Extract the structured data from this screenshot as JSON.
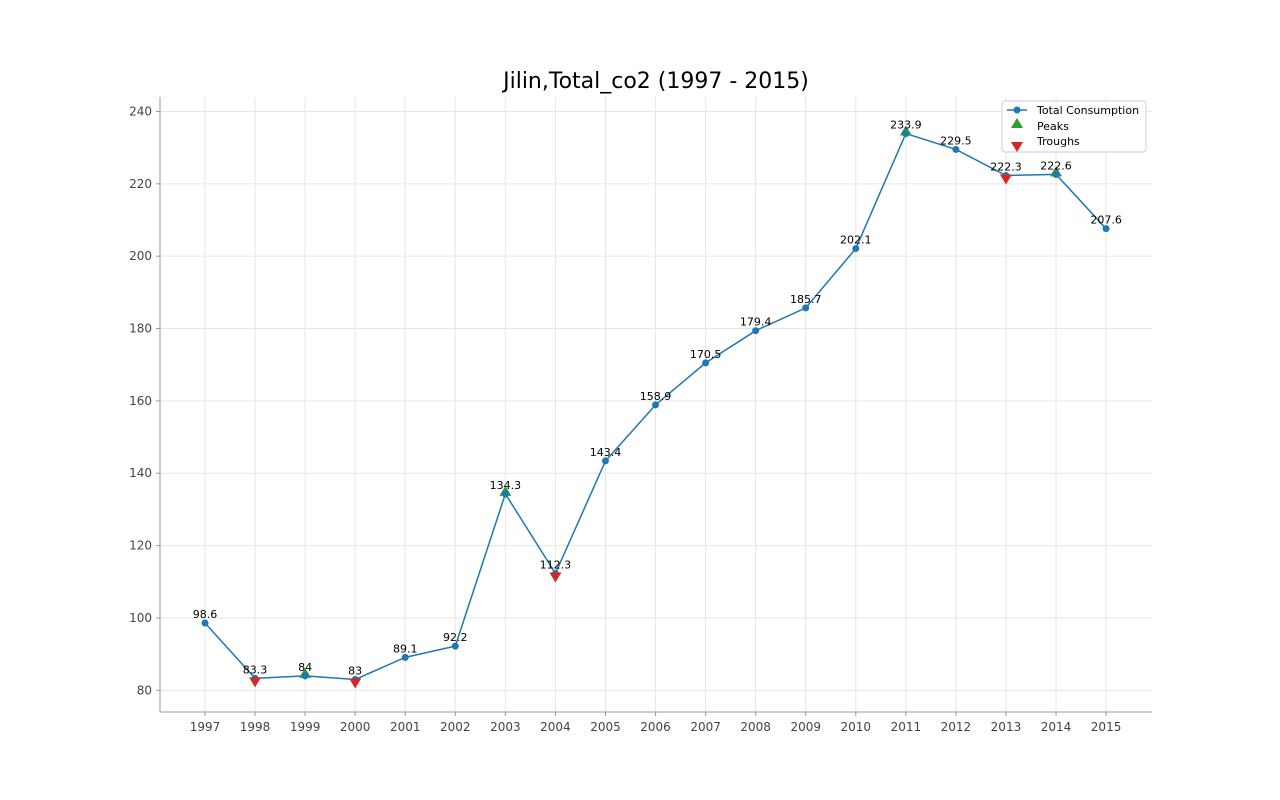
{
  "chart_data": {
    "type": "line",
    "title": "Jilin,Total_co2 (1997 - 2015)",
    "xlabel": "",
    "ylabel": "",
    "x": [
      "1997",
      "1998",
      "1999",
      "2000",
      "2001",
      "2002",
      "2003",
      "2004",
      "2005",
      "2006",
      "2007",
      "2008",
      "2009",
      "2010",
      "2011",
      "2012",
      "2013",
      "2014",
      "2015"
    ],
    "series": [
      {
        "name": "Total Consumption",
        "color": "#1f77b4",
        "values": [
          98.6,
          83.3,
          84,
          83,
          89.1,
          92.2,
          134.3,
          112.3,
          143.4,
          158.9,
          170.5,
          179.4,
          185.7,
          202.1,
          233.9,
          229.5,
          222.3,
          222.6,
          207.6
        ]
      }
    ],
    "data_labels": [
      "98.6",
      "83.3",
      "84",
      "83",
      "89.1",
      "92.2",
      "134.3",
      "112.3",
      "143.4",
      "158.9",
      "170.5",
      "179.4",
      "185.7",
      "202.1",
      "233.9",
      "229.5",
      "222.3",
      "222.6",
      "207.6"
    ],
    "peaks": {
      "name": "Peaks",
      "color": "#2ca02c",
      "x": [
        "1999",
        "2003",
        "2011",
        "2014"
      ]
    },
    "troughs": {
      "name": "Troughs",
      "color": "#d62728",
      "x": [
        "1998",
        "2000",
        "2004",
        "2013"
      ]
    },
    "y_ticks": [
      "80",
      "100",
      "120",
      "140",
      "160",
      "180",
      "200",
      "220",
      "240"
    ],
    "ylim": [
      74,
      244
    ],
    "grid": true,
    "legend_position": "top-right"
  }
}
